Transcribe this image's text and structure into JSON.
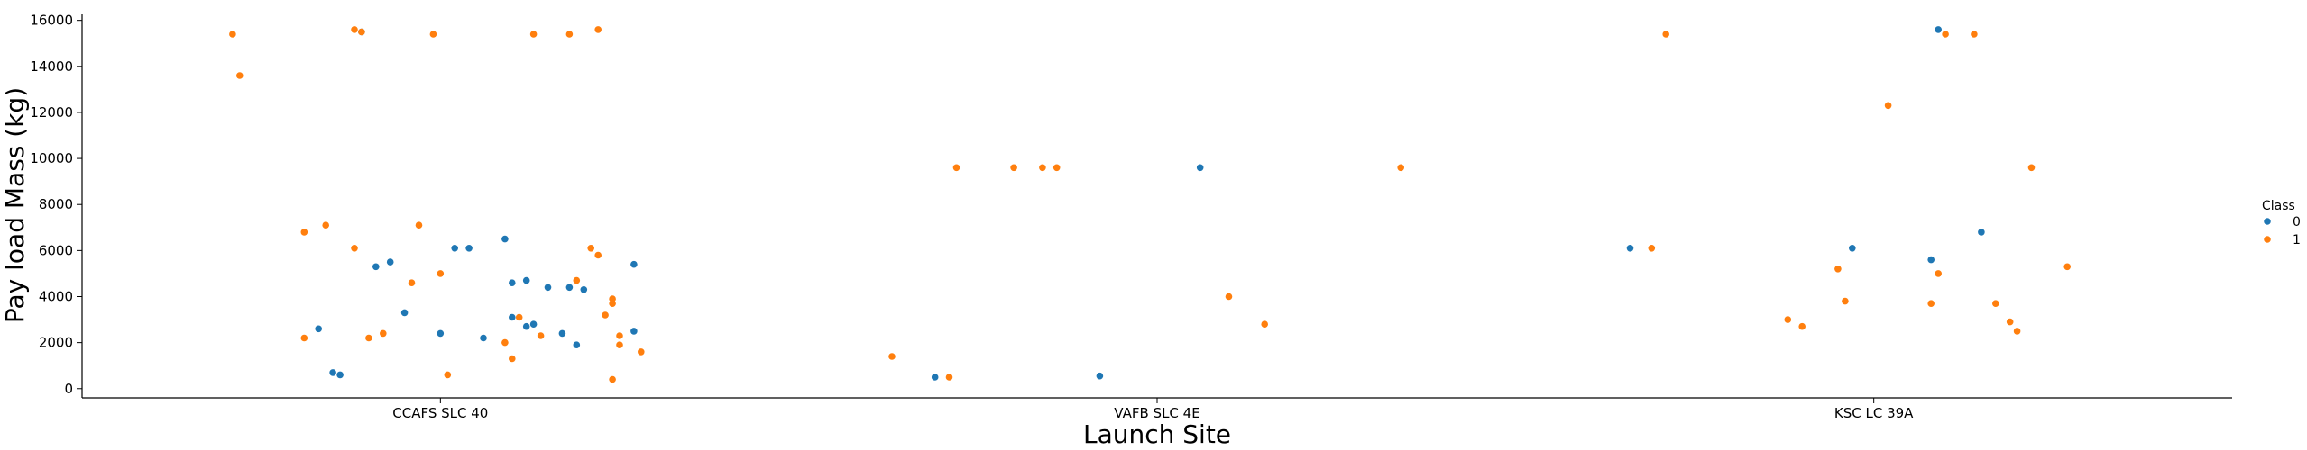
{
  "chart_data": {
    "type": "scatter",
    "xlabel": "Launch Site",
    "ylabel": "Pay load Mass (kg)",
    "categories": [
      "CCAFS SLC 40",
      "VAFB SLC 4E",
      "KSC LC 39A"
    ],
    "ylim": [
      -400,
      16300
    ],
    "yticks": [
      0,
      2000,
      4000,
      6000,
      8000,
      10000,
      12000,
      14000,
      16000
    ],
    "grid": false,
    "legend": {
      "title": "Class",
      "position": "right",
      "entries": [
        "0",
        "1"
      ]
    },
    "colors": {
      "0": "#1f77b4",
      "1": "#ff7f0e"
    },
    "series": [
      {
        "name": "0",
        "points": [
          [
            "CCAFS SLC 40",
            -0.11,
            15500
          ],
          [
            "CCAFS SLC 40",
            -0.09,
            5300
          ],
          [
            "CCAFS SLC 40",
            -0.07,
            5500
          ],
          [
            "CCAFS SLC 40",
            -0.05,
            3300
          ],
          [
            "CCAFS SLC 40",
            0.02,
            6100
          ],
          [
            "CCAFS SLC 40",
            0.04,
            6100
          ],
          [
            "CCAFS SLC 40",
            0.09,
            6500
          ],
          [
            "CCAFS SLC 40",
            0.1,
            4600
          ],
          [
            "CCAFS SLC 40",
            0.12,
            4700
          ],
          [
            "CCAFS SLC 40",
            0.15,
            4400
          ],
          [
            "CCAFS SLC 40",
            0.18,
            4400
          ],
          [
            "CCAFS SLC 40",
            0.2,
            4300
          ],
          [
            "CCAFS SLC 40",
            0.27,
            5400
          ],
          [
            "CCAFS SLC 40",
            -0.17,
            2600
          ],
          [
            "CCAFS SLC 40",
            -0.15,
            700
          ],
          [
            "CCAFS SLC 40",
            -0.14,
            600
          ],
          [
            "CCAFS SLC 40",
            0.0,
            2400
          ],
          [
            "CCAFS SLC 40",
            0.06,
            2200
          ],
          [
            "CCAFS SLC 40",
            0.1,
            3100
          ],
          [
            "CCAFS SLC 40",
            0.13,
            2800
          ],
          [
            "CCAFS SLC 40",
            0.17,
            2400
          ],
          [
            "CCAFS SLC 40",
            0.19,
            1900
          ],
          [
            "CCAFS SLC 40",
            0.27,
            2500
          ],
          [
            "CCAFS SLC 40",
            0.12,
            2700
          ],
          [
            "VAFB SLC 4E",
            0.06,
            9600
          ],
          [
            "VAFB SLC 4E",
            -0.31,
            500
          ],
          [
            "VAFB SLC 4E",
            -0.08,
            550
          ],
          [
            "KSC LC 39A",
            0.09,
            15600
          ],
          [
            "KSC LC 39A",
            -0.34,
            6100
          ],
          [
            "KSC LC 39A",
            -0.03,
            6100
          ],
          [
            "KSC LC 39A",
            0.08,
            5600
          ],
          [
            "KSC LC 39A",
            0.15,
            6800
          ]
        ]
      },
      {
        "name": "1",
        "points": [
          [
            "CCAFS SLC 40",
            -0.29,
            15400
          ],
          [
            "CCAFS SLC 40",
            -0.12,
            15600
          ],
          [
            "CCAFS SLC 40",
            -0.11,
            15500
          ],
          [
            "CCAFS SLC 40",
            -0.01,
            15400
          ],
          [
            "CCAFS SLC 40",
            0.13,
            15400
          ],
          [
            "CCAFS SLC 40",
            0.18,
            15400
          ],
          [
            "CCAFS SLC 40",
            0.22,
            15600
          ],
          [
            "CCAFS SLC 40",
            -0.28,
            13600
          ],
          [
            "CCAFS SLC 40",
            -0.19,
            6800
          ],
          [
            "CCAFS SLC 40",
            -0.16,
            7100
          ],
          [
            "CCAFS SLC 40",
            -0.12,
            6100
          ],
          [
            "CCAFS SLC 40",
            -0.03,
            7100
          ],
          [
            "CCAFS SLC 40",
            0.21,
            6100
          ],
          [
            "CCAFS SLC 40",
            0.22,
            5800
          ],
          [
            "CCAFS SLC 40",
            -0.04,
            4600
          ],
          [
            "CCAFS SLC 40",
            0.0,
            5000
          ],
          [
            "CCAFS SLC 40",
            0.19,
            4700
          ],
          [
            "CCAFS SLC 40",
            0.24,
            3900
          ],
          [
            "CCAFS SLC 40",
            0.24,
            3700
          ],
          [
            "CCAFS SLC 40",
            0.23,
            3200
          ],
          [
            "CCAFS SLC 40",
            0.11,
            3100
          ],
          [
            "CCAFS SLC 40",
            -0.19,
            2200
          ],
          [
            "CCAFS SLC 40",
            -0.1,
            2200
          ],
          [
            "CCAFS SLC 40",
            -0.08,
            2400
          ],
          [
            "CCAFS SLC 40",
            0.09,
            2000
          ],
          [
            "CCAFS SLC 40",
            0.14,
            2300
          ],
          [
            "CCAFS SLC 40",
            0.25,
            2300
          ],
          [
            "CCAFS SLC 40",
            0.25,
            1900
          ],
          [
            "CCAFS SLC 40",
            0.28,
            1600
          ],
          [
            "CCAFS SLC 40",
            0.1,
            1300
          ],
          [
            "CCAFS SLC 40",
            0.01,
            600
          ],
          [
            "CCAFS SLC 40",
            0.24,
            400
          ],
          [
            "VAFB SLC 4E",
            -0.28,
            9600
          ],
          [
            "VAFB SLC 4E",
            -0.2,
            9600
          ],
          [
            "VAFB SLC 4E",
            -0.16,
            9600
          ],
          [
            "VAFB SLC 4E",
            -0.14,
            9600
          ],
          [
            "VAFB SLC 4E",
            0.34,
            9600
          ],
          [
            "VAFB SLC 4E",
            0.1,
            4000
          ],
          [
            "VAFB SLC 4E",
            0.15,
            2800
          ],
          [
            "VAFB SLC 4E",
            -0.37,
            1400
          ],
          [
            "VAFB SLC 4E",
            -0.29,
            500
          ],
          [
            "KSC LC 39A",
            -0.29,
            15400
          ],
          [
            "KSC LC 39A",
            0.1,
            15400
          ],
          [
            "KSC LC 39A",
            0.14,
            15400
          ],
          [
            "KSC LC 39A",
            0.02,
            12300
          ],
          [
            "KSC LC 39A",
            0.22,
            9600
          ],
          [
            "KSC LC 39A",
            -0.31,
            6100
          ],
          [
            "KSC LC 39A",
            0.27,
            5300
          ],
          [
            "KSC LC 39A",
            -0.05,
            5200
          ],
          [
            "KSC LC 39A",
            0.09,
            5000
          ],
          [
            "KSC LC 39A",
            -0.04,
            3800
          ],
          [
            "KSC LC 39A",
            0.08,
            3700
          ],
          [
            "KSC LC 39A",
            0.17,
            3700
          ],
          [
            "KSC LC 39A",
            0.19,
            2900
          ],
          [
            "KSC LC 39A",
            0.2,
            2500
          ],
          [
            "KSC LC 39A",
            -0.12,
            3000
          ],
          [
            "KSC LC 39A",
            -0.1,
            2700
          ]
        ]
      }
    ]
  }
}
